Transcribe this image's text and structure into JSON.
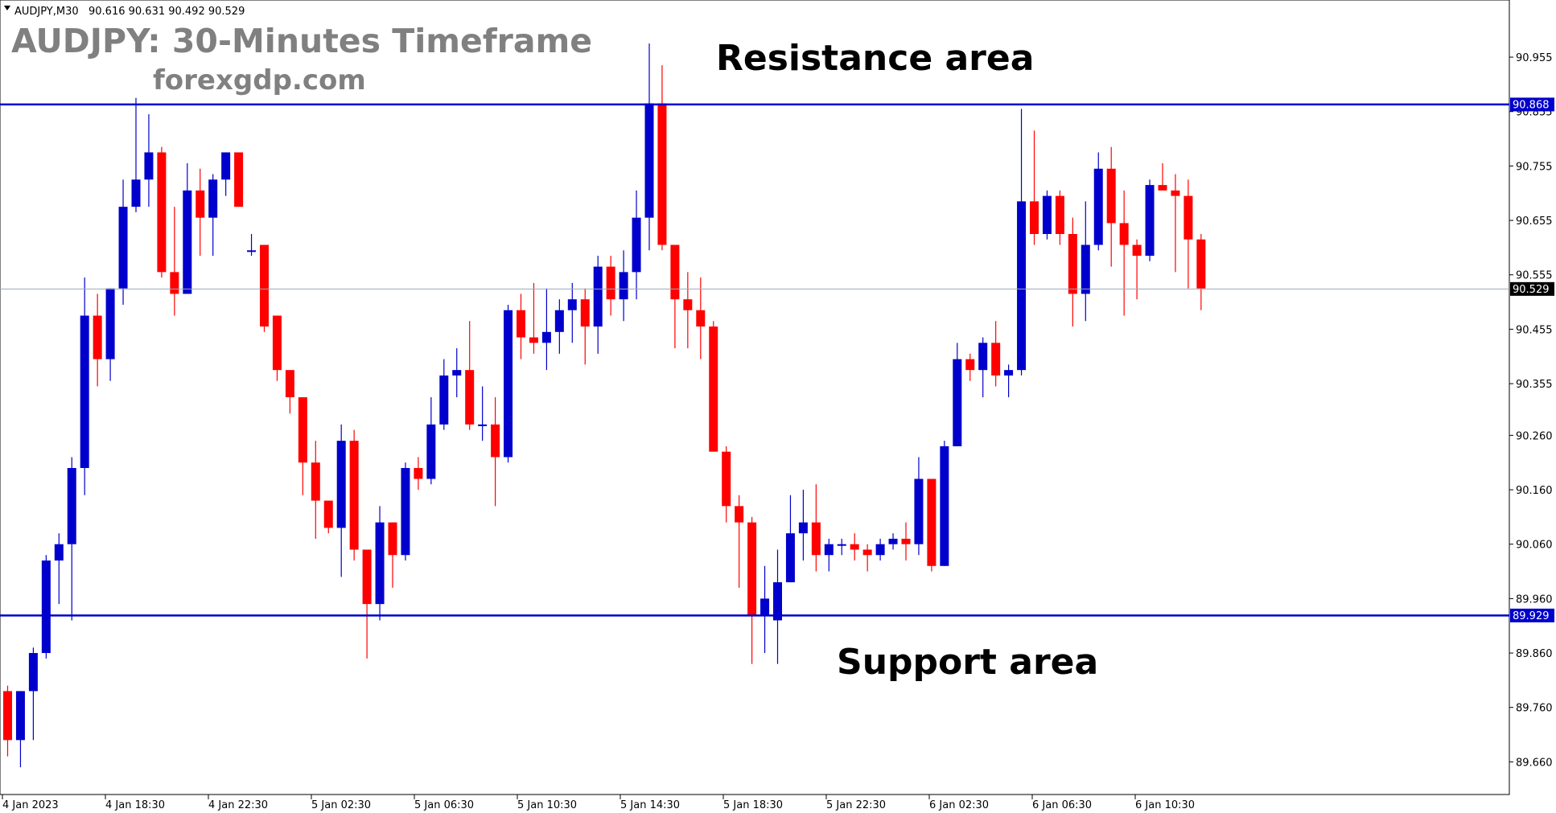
{
  "header": {
    "symbol": "AUDJPY,M30",
    "ohlc": "90.616 90.631 90.492 90.529"
  },
  "title": "AUDJPY: 30-Minutes Timeframe",
  "site": "forexgdp.com",
  "colors": {
    "bull": "#0000cc",
    "bear": "#ff0000",
    "level_line": "#0000cc",
    "price_line": "#9aa8b8",
    "axis": "#000000"
  },
  "chart_data": {
    "type": "candlestick",
    "symbol": "AUDJPY",
    "timeframe": "M30",
    "ylim": [
      89.6,
      91.06
    ],
    "yticks": [
      "89.660",
      "89.760",
      "89.860",
      "89.960",
      "90.060",
      "90.160",
      "90.260",
      "90.355",
      "90.455",
      "90.555",
      "90.655",
      "90.755",
      "90.855",
      "90.955"
    ],
    "xticks": [
      "4 Jan 2023",
      "4 Jan 18:30",
      "4 Jan 22:30",
      "5 Jan 02:30",
      "5 Jan 06:30",
      "5 Jan 10:30",
      "5 Jan 14:30",
      "5 Jan 18:30",
      "5 Jan 22:30",
      "6 Jan 02:30",
      "6 Jan 06:30",
      "6 Jan 10:30"
    ],
    "levels": [
      {
        "name": "Resistance area",
        "value": 90.868,
        "label": "90.868"
      },
      {
        "name": "Support area",
        "value": 89.929,
        "label": "89.929"
      }
    ],
    "current_price": {
      "value": 90.529,
      "label": "90.529"
    },
    "candles": [
      [
        89.79,
        89.8,
        89.67,
        89.7
      ],
      [
        89.7,
        89.79,
        89.65,
        89.79
      ],
      [
        89.79,
        89.87,
        89.7,
        89.86
      ],
      [
        89.86,
        90.04,
        89.85,
        90.03
      ],
      [
        90.03,
        90.08,
        89.95,
        90.06
      ],
      [
        90.06,
        90.22,
        89.92,
        90.2
      ],
      [
        90.2,
        90.55,
        90.15,
        90.48
      ],
      [
        90.48,
        90.52,
        90.35,
        90.4
      ],
      [
        90.4,
        90.53,
        90.36,
        90.53
      ],
      [
        90.53,
        90.73,
        90.5,
        90.68
      ],
      [
        90.68,
        90.88,
        90.67,
        90.73
      ],
      [
        90.73,
        90.85,
        90.68,
        90.78
      ],
      [
        90.78,
        90.79,
        90.55,
        90.56
      ],
      [
        90.56,
        90.68,
        90.48,
        90.52
      ],
      [
        90.52,
        90.76,
        90.52,
        90.71
      ],
      [
        90.71,
        90.75,
        90.59,
        90.66
      ],
      [
        90.66,
        90.74,
        90.59,
        90.73
      ],
      [
        90.73,
        90.78,
        90.7,
        90.78
      ],
      [
        90.78,
        90.78,
        90.68,
        90.68
      ],
      [
        90.6,
        90.63,
        90.59,
        90.6
      ],
      [
        90.61,
        90.61,
        90.45,
        90.46
      ],
      [
        90.48,
        90.48,
        90.36,
        90.38
      ],
      [
        90.38,
        90.38,
        90.3,
        90.33
      ],
      [
        90.33,
        90.33,
        90.15,
        90.21
      ],
      [
        90.21,
        90.25,
        90.07,
        90.14
      ],
      [
        90.14,
        90.14,
        90.08,
        90.09
      ],
      [
        90.09,
        90.28,
        90.0,
        90.25
      ],
      [
        90.25,
        90.27,
        90.03,
        90.05
      ],
      [
        90.05,
        90.05,
        89.85,
        89.95
      ],
      [
        89.95,
        90.13,
        89.92,
        90.1
      ],
      [
        90.1,
        90.1,
        89.98,
        90.04
      ],
      [
        90.04,
        90.21,
        90.03,
        90.2
      ],
      [
        90.2,
        90.22,
        90.16,
        90.18
      ],
      [
        90.18,
        90.33,
        90.17,
        90.28
      ],
      [
        90.28,
        90.4,
        90.27,
        90.37
      ],
      [
        90.37,
        90.42,
        90.33,
        90.38
      ],
      [
        90.38,
        90.47,
        90.27,
        90.28
      ],
      [
        90.28,
        90.35,
        90.25,
        90.28
      ],
      [
        90.28,
        90.33,
        90.13,
        90.22
      ],
      [
        90.22,
        90.5,
        90.21,
        90.49
      ],
      [
        90.49,
        90.52,
        90.4,
        90.44
      ],
      [
        90.44,
        90.54,
        90.41,
        90.43
      ],
      [
        90.43,
        90.53,
        90.38,
        90.45
      ],
      [
        90.45,
        90.51,
        90.41,
        90.49
      ],
      [
        90.49,
        90.54,
        90.43,
        90.51
      ],
      [
        90.51,
        90.53,
        90.39,
        90.46
      ],
      [
        90.46,
        90.59,
        90.41,
        90.57
      ],
      [
        90.57,
        90.59,
        90.48,
        90.51
      ],
      [
        90.51,
        90.6,
        90.47,
        90.56
      ],
      [
        90.56,
        90.71,
        90.51,
        90.66
      ],
      [
        90.66,
        90.98,
        90.6,
        90.87
      ],
      [
        90.87,
        90.94,
        90.6,
        90.61
      ],
      [
        90.61,
        90.61,
        90.42,
        90.51
      ],
      [
        90.51,
        90.56,
        90.42,
        90.49
      ],
      [
        90.49,
        90.55,
        90.4,
        90.46
      ],
      [
        90.46,
        90.47,
        90.23,
        90.23
      ],
      [
        90.23,
        90.24,
        90.1,
        90.13
      ],
      [
        90.13,
        90.15,
        89.98,
        90.1
      ],
      [
        90.1,
        90.11,
        89.84,
        89.93
      ],
      [
        89.93,
        90.02,
        89.86,
        89.96
      ],
      [
        89.92,
        90.05,
        89.84,
        89.99
      ],
      [
        89.99,
        90.15,
        89.99,
        90.08
      ],
      [
        90.08,
        90.16,
        90.03,
        90.1
      ],
      [
        90.1,
        90.17,
        90.01,
        90.04
      ],
      [
        90.04,
        90.07,
        90.01,
        90.06
      ],
      [
        90.06,
        90.07,
        90.04,
        90.06
      ],
      [
        90.06,
        90.08,
        90.03,
        90.05
      ],
      [
        90.05,
        90.06,
        90.01,
        90.04
      ],
      [
        90.04,
        90.07,
        90.03,
        90.06
      ],
      [
        90.06,
        90.08,
        90.05,
        90.07
      ],
      [
        90.07,
        90.1,
        90.03,
        90.06
      ],
      [
        90.06,
        90.22,
        90.04,
        90.18
      ],
      [
        90.18,
        90.17,
        90.01,
        90.02
      ],
      [
        90.02,
        90.25,
        90.02,
        90.24
      ],
      [
        90.24,
        90.43,
        90.24,
        90.4
      ],
      [
        90.4,
        90.41,
        90.36,
        90.38
      ],
      [
        90.38,
        90.44,
        90.33,
        90.43
      ],
      [
        90.43,
        90.47,
        90.35,
        90.37
      ],
      [
        90.37,
        90.39,
        90.33,
        90.38
      ],
      [
        90.38,
        90.86,
        90.37,
        90.69
      ],
      [
        90.69,
        90.82,
        90.61,
        90.63
      ],
      [
        90.63,
        90.71,
        90.62,
        90.7
      ],
      [
        90.7,
        90.71,
        90.61,
        90.63
      ],
      [
        90.63,
        90.66,
        90.46,
        90.52
      ],
      [
        90.52,
        90.69,
        90.47,
        90.61
      ],
      [
        90.61,
        90.78,
        90.6,
        90.75
      ],
      [
        90.75,
        90.79,
        90.57,
        90.65
      ],
      [
        90.65,
        90.71,
        90.48,
        90.61
      ],
      [
        90.61,
        90.62,
        90.51,
        90.59
      ],
      [
        90.59,
        90.73,
        90.58,
        90.72
      ],
      [
        90.72,
        90.76,
        90.71,
        90.71
      ],
      [
        90.71,
        90.74,
        90.56,
        90.7
      ],
      [
        90.7,
        90.73,
        90.53,
        90.62
      ],
      [
        90.62,
        90.63,
        90.49,
        90.53
      ]
    ]
  },
  "annotations": {
    "resistance": "Resistance area",
    "support": "Support area"
  }
}
